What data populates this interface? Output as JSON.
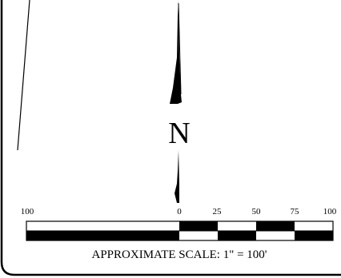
{
  "north_arrow": {
    "letter": "N"
  },
  "scale_bar": {
    "tick_labels": [
      "100",
      "0",
      "25",
      "50",
      "75",
      "100"
    ],
    "caption": "APPROXIMATE SCALE: 1\" = 100'"
  }
}
